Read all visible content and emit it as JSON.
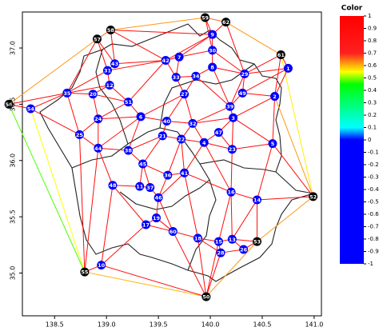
{
  "chart_data": {
    "type": "network",
    "xlim": [
      138.19,
      141.07
    ],
    "ylim": [
      34.62,
      37.32
    ],
    "xticks": [
      138.5,
      {
        "value": 139,
        "label": "139.0"
      },
      139.5,
      {
        "value": 140,
        "label": "140.0"
      },
      140.5,
      {
        "value": 141,
        "label": "141.0"
      }
    ],
    "yticks": [
      {
        "value": 35,
        "label": "35.0"
      },
      35.5,
      {
        "value": 36,
        "label": "36.0"
      },
      36.5,
      {
        "value": 37,
        "label": "37.0"
      }
    ],
    "nodes": {
      "labels": [
        1,
        2,
        3,
        4,
        5,
        6,
        7,
        8,
        9,
        10,
        11,
        12,
        13,
        14,
        15,
        16,
        17,
        18,
        19,
        20,
        21,
        22,
        23,
        24,
        25,
        26,
        27,
        28,
        29,
        30,
        31,
        32,
        33,
        34,
        35,
        36,
        37,
        38,
        39,
        40,
        41,
        42,
        43,
        44,
        45,
        46,
        47,
        48,
        49,
        50,
        51,
        52,
        53,
        54,
        55,
        56,
        57,
        58,
        59,
        60,
        61,
        62
      ],
      "x": [
        140.75,
        140.62,
        140.22,
        139.94,
        140.6,
        139.33,
        139.7,
        140.02,
        140.02,
        138.95,
        139.32,
        139.03,
        140.21,
        140.45,
        140.08,
        140.2,
        139.38,
        139.88,
        139.48,
        138.87,
        139.54,
        139.72,
        140.21,
        138.92,
        138.74,
        140.32,
        139.75,
        140.1,
        140.33,
        140.02,
        139.01,
        139.83,
        139.67,
        139.86,
        138.62,
        139.59,
        139.42,
        139.21,
        140.19,
        139.58,
        139.75,
        139.57,
        139.08,
        138.92,
        139.35,
        139.5,
        140.08,
        139.06,
        140.31,
        139.96,
        139.21,
        140.99,
        140.45,
        138.27,
        138.79,
        138.06,
        138.91,
        139.04,
        139.95,
        139.64,
        140.68,
        140.15
      ],
      "y": [
        36.82,
        36.57,
        36.38,
        36.16,
        36.15,
        36.39,
        36.92,
        36.83,
        37.12,
        35.07,
        35.77,
        36.67,
        35.3,
        35.65,
        35.28,
        35.72,
        35.43,
        35.31,
        35.49,
        36.59,
        36.22,
        36.19,
        36.1,
        36.37,
        36.23,
        35.21,
        36.59,
        35.18,
        36.77,
        36.98,
        36.8,
        36.33,
        36.74,
        36.75,
        36.6,
        35.87,
        35.76,
        36.09,
        36.48,
        36.35,
        35.89,
        36.89,
        36.86,
        36.11,
        35.97,
        35.67,
        36.25,
        35.78,
        36.6,
        34.79,
        36.52,
        35.68,
        35.28,
        36.46,
        35.01,
        36.5,
        37.08,
        37.16,
        37.27,
        35.37,
        36.94,
        37.23
      ]
    },
    "node_color": "#0000ff",
    "hull_color": "#000000",
    "hull_nodes": [
      50,
      52,
      53,
      55,
      56,
      57,
      58,
      59,
      61,
      62
    ],
    "edges": [
      [
        56,
        57,
        0.62
      ],
      [
        57,
        58,
        0.65
      ],
      [
        58,
        59,
        0.62
      ],
      [
        59,
        62,
        0.65
      ],
      [
        62,
        61,
        0.62
      ],
      [
        61,
        52,
        0.56
      ],
      [
        52,
        53,
        0.62
      ],
      [
        53,
        50,
        0.62
      ],
      [
        50,
        55,
        0.6
      ],
      [
        55,
        56,
        0.48
      ],
      [
        54,
        55,
        0.55
      ],
      [
        58,
        9,
        0.9
      ],
      [
        59,
        9,
        0.9
      ],
      [
        62,
        9,
        0.9
      ],
      [
        61,
        1,
        0.9
      ],
      [
        61,
        29,
        0.9
      ],
      [
        52,
        5,
        0.9
      ],
      [
        52,
        14,
        0.9
      ],
      [
        53,
        13,
        0.9
      ],
      [
        53,
        14,
        0.9
      ],
      [
        53,
        26,
        0.9
      ],
      [
        50,
        15,
        0.9
      ],
      [
        50,
        28,
        0.9
      ],
      [
        50,
        18,
        0.9
      ],
      [
        50,
        10,
        0.9
      ],
      [
        55,
        10,
        0.9
      ],
      [
        56,
        54,
        0.9
      ],
      [
        56,
        35,
        0.9
      ],
      [
        57,
        31,
        0.9
      ],
      [
        57,
        43,
        0.9
      ],
      [
        57,
        35,
        0.9
      ],
      [
        58,
        43,
        0.9
      ],
      [
        58,
        42,
        0.9
      ],
      [
        59,
        30,
        0.9
      ],
      [
        62,
        29,
        0.9
      ],
      [
        61,
        2,
        0.9
      ],
      [
        52,
        2,
        0.62
      ],
      [
        55,
        44,
        0.9
      ],
      [
        55,
        25,
        0.9
      ],
      [
        1,
        2,
        0.9
      ],
      [
        1,
        29,
        0.9
      ],
      [
        1,
        49,
        0.9
      ],
      [
        2,
        49,
        0.9
      ],
      [
        2,
        5,
        0.9
      ],
      [
        2,
        3,
        0.9
      ],
      [
        3,
        39,
        0.9
      ],
      [
        3,
        23,
        0.9
      ],
      [
        3,
        5,
        0.9
      ],
      [
        3,
        47,
        0.9
      ],
      [
        3,
        32,
        0.9
      ],
      [
        39,
        49,
        0.9
      ],
      [
        39,
        29,
        0.9
      ],
      [
        39,
        8,
        0.9
      ],
      [
        39,
        34,
        0.9
      ],
      [
        39,
        32,
        0.9
      ],
      [
        29,
        8,
        0.9
      ],
      [
        29,
        30,
        0.9
      ],
      [
        29,
        49,
        0.9
      ],
      [
        30,
        8,
        0.9
      ],
      [
        30,
        9,
        0.9
      ],
      [
        30,
        7,
        0.9
      ],
      [
        9,
        7,
        0.9
      ],
      [
        9,
        42,
        0.9
      ],
      [
        42,
        7,
        0.9
      ],
      [
        42,
        43,
        0.9
      ],
      [
        42,
        33,
        0.9
      ],
      [
        42,
        51,
        0.9
      ],
      [
        42,
        31,
        0.9
      ],
      [
        43,
        31,
        0.9
      ],
      [
        31,
        12,
        0.9
      ],
      [
        31,
        35,
        0.9
      ],
      [
        12,
        51,
        0.9
      ],
      [
        12,
        20,
        0.9
      ],
      [
        12,
        35,
        0.9
      ],
      [
        20,
        35,
        0.9
      ],
      [
        20,
        24,
        0.9
      ],
      [
        20,
        51,
        0.9
      ],
      [
        35,
        54,
        0.9
      ],
      [
        54,
        25,
        0.9
      ],
      [
        35,
        25,
        0.9
      ],
      [
        24,
        25,
        0.9
      ],
      [
        24,
        44,
        0.9
      ],
      [
        24,
        51,
        0.9
      ],
      [
        24,
        6,
        0.9
      ],
      [
        51,
        6,
        0.9
      ],
      [
        6,
        40,
        0.9
      ],
      [
        6,
        27,
        0.9
      ],
      [
        6,
        38,
        0.9
      ],
      [
        6,
        44,
        0.9
      ],
      [
        27,
        33,
        0.9
      ],
      [
        27,
        34,
        0.9
      ],
      [
        27,
        32,
        0.9
      ],
      [
        27,
        40,
        0.9
      ],
      [
        33,
        7,
        0.9
      ],
      [
        33,
        34,
        0.9
      ],
      [
        34,
        8,
        0.9
      ],
      [
        32,
        40,
        0.9
      ],
      [
        32,
        22,
        0.9
      ],
      [
        32,
        4,
        0.9
      ],
      [
        40,
        21,
        0.9
      ],
      [
        21,
        22,
        0.9
      ],
      [
        21,
        45,
        0.9
      ],
      [
        21,
        38,
        0.9
      ],
      [
        22,
        4,
        0.9
      ],
      [
        22,
        41,
        0.9
      ],
      [
        4,
        47,
        0.9
      ],
      [
        4,
        41,
        0.9
      ],
      [
        4,
        16,
        0.9
      ],
      [
        4,
        23,
        0.9
      ],
      [
        47,
        23,
        0.9
      ],
      [
        23,
        5,
        0.9
      ],
      [
        23,
        16,
        0.9
      ],
      [
        5,
        14,
        0.9
      ],
      [
        16,
        14,
        0.9
      ],
      [
        16,
        41,
        0.9
      ],
      [
        16,
        13,
        0.9
      ],
      [
        14,
        13,
        0.9
      ],
      [
        13,
        26,
        0.9
      ],
      [
        13,
        15,
        0.9
      ],
      [
        15,
        28,
        0.9
      ],
      [
        15,
        18,
        0.9
      ],
      [
        18,
        28,
        0.9
      ],
      [
        18,
        60,
        0.9
      ],
      [
        60,
        19,
        0.9
      ],
      [
        60,
        17,
        0.9
      ],
      [
        17,
        10,
        0.9
      ],
      [
        17,
        19,
        0.9
      ],
      [
        10,
        48,
        0.9
      ],
      [
        48,
        44,
        0.9
      ],
      [
        48,
        11,
        0.9
      ],
      [
        48,
        17,
        0.9
      ],
      [
        44,
        38,
        0.9
      ],
      [
        44,
        25,
        0.9
      ],
      [
        38,
        45,
        0.9
      ],
      [
        45,
        11,
        0.9
      ],
      [
        45,
        37,
        0.9
      ],
      [
        11,
        37,
        0.9
      ],
      [
        37,
        46,
        0.9
      ],
      [
        46,
        36,
        0.9
      ],
      [
        36,
        41,
        0.9
      ],
      [
        36,
        45,
        0.9
      ],
      [
        46,
        19,
        0.9
      ],
      [
        41,
        18,
        0.9
      ],
      [
        41,
        46,
        0.9
      ],
      [
        16,
        15,
        0.9
      ],
      [
        26,
        28,
        0.9
      ],
      [
        60,
        50,
        0.9
      ],
      [
        46,
        60,
        0.9
      ],
      [
        22,
        36,
        0.9
      ]
    ],
    "colorbar_title": "Color",
    "colorbar_lim": [
      -1,
      1
    ],
    "colorbar_ticks": [
      1,
      0.9,
      0.8,
      0.7,
      0.6,
      0.5,
      0.4,
      0.3,
      0.2,
      0.1,
      0,
      -0.1,
      -0.2,
      -0.3,
      -0.4,
      -0.5,
      -0.6,
      -0.7,
      -0.8,
      -0.9,
      -1
    ],
    "colorscale": [
      [
        -1,
        "#0000ff"
      ],
      [
        0,
        "#0000ff"
      ],
      [
        0.1,
        "#00ffff"
      ],
      [
        0.45,
        "#00ff00"
      ],
      [
        0.55,
        "#ffff00"
      ],
      [
        0.7,
        "#ff2020"
      ],
      [
        1,
        "#ff0000"
      ]
    ]
  }
}
